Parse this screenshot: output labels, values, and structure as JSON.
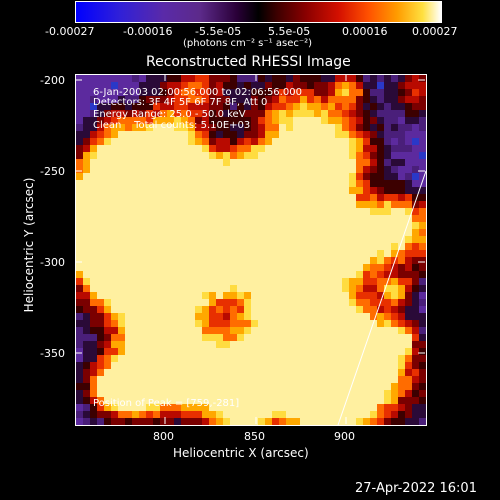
{
  "colorbar": {
    "tick_labels": [
      "-0.00027",
      "-0.00016",
      "-5.5e-05",
      "5.5e-05",
      "0.00016",
      "0.00027"
    ],
    "units": "(photons cm⁻² s⁻¹ asec⁻²)"
  },
  "title": "Reconstructed RHESSI Image",
  "annotations": {
    "time_range": "6-Jan-2003 02:00:56.000 to 02:06:56.000",
    "detectors": "Detectors: 3F 4F 5F 6F 7F 8F, Att 0",
    "energy_range": "Energy Range: 25.0 - 50.0 keV",
    "method": "Clean    Total counts: 5.10E+03",
    "peak": "Position of Peak = [759,-281]"
  },
  "axes": {
    "x_label": "Heliocentric X (arcsec)",
    "y_label": "Heliocentric Y (arcsec)",
    "x_ticks": [
      "800",
      "850",
      "900"
    ],
    "y_ticks": [
      "-200",
      "-250",
      "-300",
      "-350"
    ]
  },
  "timestamp": "27-Apr-2022 16:01",
  "colors": {
    "background": "#000000",
    "axis": "#ffffff",
    "limb_line": "#ffffff"
  }
}
